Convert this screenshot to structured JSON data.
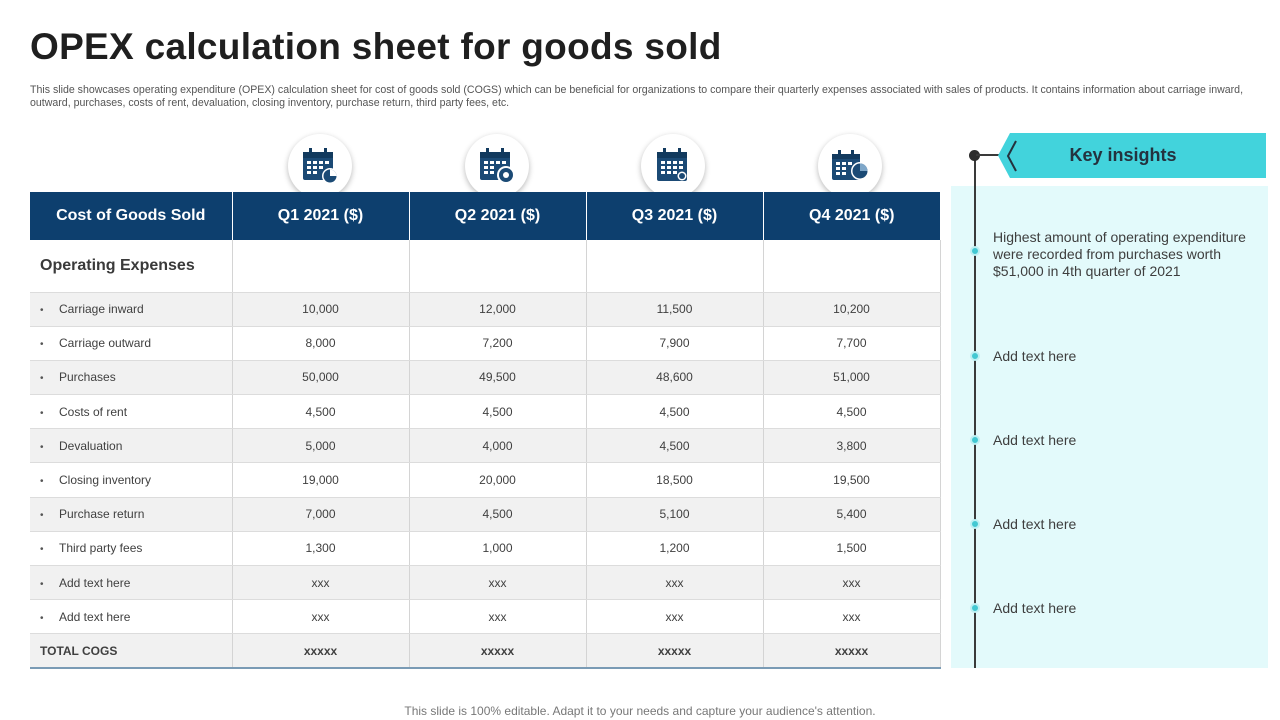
{
  "title": "OPEX calculation sheet for goods sold",
  "description": "This slide showcases operating expenditure (OPEX) calculation sheet for cost of goods sold (COGS) which can be beneficial for organizations to compare their quarterly expenses associated with sales of products. It contains information about carriage inward, outward, purchases, costs of rent, devaluation, closing inventory, purchase return, third party fees, etc.",
  "table": {
    "headers": [
      "Cost of Goods Sold",
      "Q1 2021 ($)",
      "Q2 2021 ($)",
      "Q3 2021 ($)",
      "Q4 2021 ($)"
    ],
    "section_label": "Operating Expenses",
    "rows": [
      {
        "label": "Carriage inward",
        "values": [
          "10,000",
          "12,000",
          "11,500",
          "10,200"
        ]
      },
      {
        "label": "Carriage outward",
        "values": [
          "8,000",
          "7,200",
          "7,900",
          "7,700"
        ]
      },
      {
        "label": "Purchases",
        "values": [
          "50,000",
          "49,500",
          "48,600",
          "51,000"
        ]
      },
      {
        "label": "Costs of rent",
        "values": [
          "4,500",
          "4,500",
          "4,500",
          "4,500"
        ]
      },
      {
        "label": "Devaluation",
        "values": [
          "5,000",
          "4,000",
          "4,500",
          "3,800"
        ]
      },
      {
        "label": "Closing inventory",
        "values": [
          "19,000",
          "20,000",
          "18,500",
          "19,500"
        ]
      },
      {
        "label": "Purchase return",
        "values": [
          "7,000",
          "4,500",
          "5,100",
          "5,400"
        ]
      },
      {
        "label": "Third party fees",
        "values": [
          "1,300",
          "1,000",
          "1,200",
          "1,500"
        ]
      },
      {
        "label": "Add text here",
        "values": [
          "xxx",
          "xxx",
          "xxx",
          "xxx"
        ]
      },
      {
        "label": "Add text here",
        "values": [
          "xxx",
          "xxx",
          "xxx",
          "xxx"
        ]
      }
    ],
    "total": {
      "label": "TOTAL COGS",
      "values": [
        "xxxxx",
        "xxxxx",
        "xxxxx",
        "xxxxx"
      ]
    }
  },
  "icons": [
    "calendar-pie-icon",
    "calendar-settings-icon",
    "calendar-clock-icon",
    "calendar-chart-icon"
  ],
  "key_insights": {
    "title": "Key insights",
    "items": [
      "Highest amount of operating expenditure were recorded from purchases worth $51,000 in 4th quarter of 2021",
      "Add text here",
      "Add text here",
      "Add text here",
      "Add text here"
    ]
  },
  "footer": "This slide is 100% editable. Adapt it to your needs and capture your audience's attention.",
  "colors": {
    "header_bg": "#0d3f6e",
    "accent": "#42d3dc",
    "panel_bg": "#e3fafb"
  }
}
